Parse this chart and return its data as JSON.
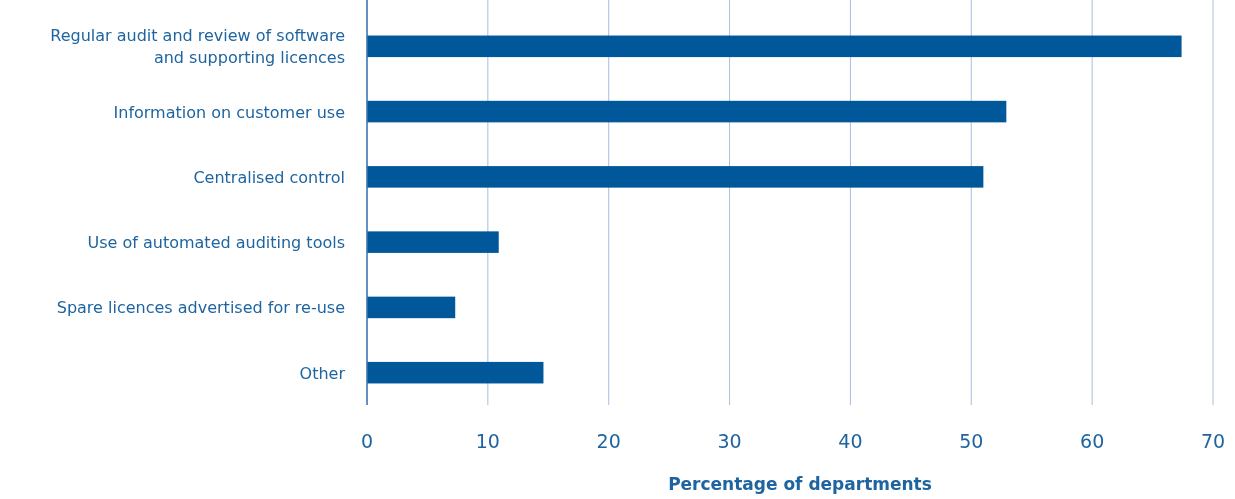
{
  "chart_data": {
    "type": "bar",
    "orientation": "horizontal",
    "xlabel": "Percentage of departments",
    "categories": [
      "Regular audit and review of software and supporting licences",
      "Information on customer use",
      "Centralised control",
      "Use of automated auditing tools",
      "Spare licences advertised for re-use",
      "Other"
    ],
    "values": [
      67.4,
      52.9,
      51.0,
      10.9,
      7.3,
      14.6
    ],
    "color": "#00589b",
    "xlim": [
      0,
      70
    ],
    "xticks": [
      0,
      10,
      20,
      30,
      40,
      50,
      60,
      70
    ],
    "grid": "x"
  }
}
